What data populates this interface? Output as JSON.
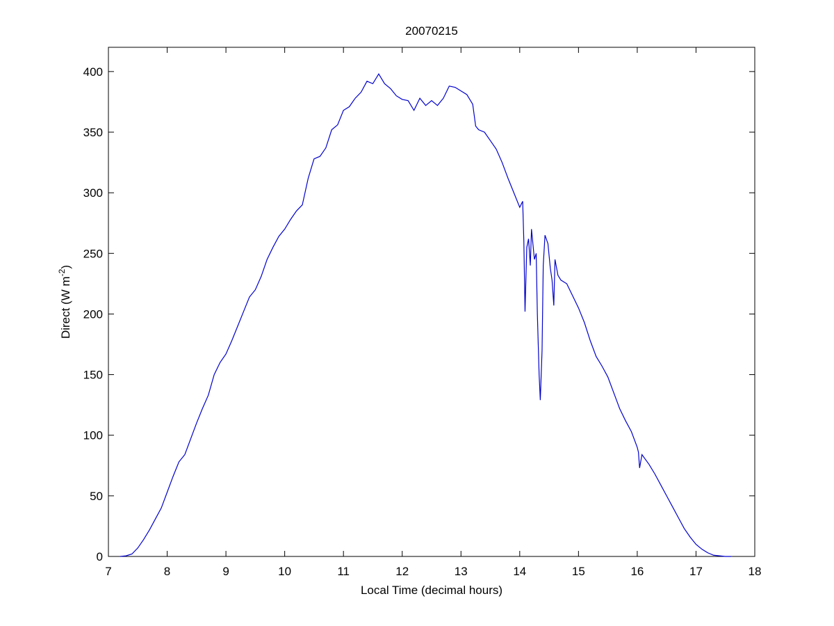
{
  "chart_data": {
    "type": "line",
    "title": "20070215",
    "xlabel": "Local Time (decimal hours)",
    "ylabel": [
      "Direct (W m",
      "-2",
      ")"
    ],
    "xlim": [
      7,
      18
    ],
    "xticks": [
      7,
      8,
      9,
      10,
      11,
      12,
      13,
      14,
      15,
      16,
      17,
      18
    ],
    "ylim": [
      0,
      420
    ],
    "yticks": [
      0,
      50,
      100,
      150,
      200,
      250,
      300,
      350,
      400
    ],
    "series": [
      {
        "color": "#0000cc",
        "x": [
          7.2,
          7.3,
          7.4,
          7.5,
          7.6,
          7.7,
          7.8,
          7.9,
          8.0,
          8.1,
          8.2,
          8.3,
          8.4,
          8.5,
          8.6,
          8.7,
          8.8,
          8.9,
          9.0,
          9.1,
          9.2,
          9.3,
          9.4,
          9.5,
          9.6,
          9.7,
          9.8,
          9.9,
          10.0,
          10.1,
          10.2,
          10.3,
          10.4,
          10.5,
          10.6,
          10.7,
          10.8,
          10.9,
          11.0,
          11.1,
          11.2,
          11.3,
          11.4,
          11.5,
          11.6,
          11.7,
          11.8,
          11.9,
          12.0,
          12.1,
          12.2,
          12.3,
          12.4,
          12.5,
          12.6,
          12.7,
          12.8,
          12.9,
          13.0,
          13.1,
          13.2,
          13.25,
          13.3,
          13.4,
          13.5,
          13.6,
          13.7,
          13.8,
          13.9,
          14.0,
          14.05,
          14.07,
          14.09,
          14.12,
          14.15,
          14.18,
          14.2,
          14.25,
          14.28,
          14.3,
          14.33,
          14.35,
          14.38,
          14.4,
          14.43,
          14.48,
          14.52,
          14.55,
          14.58,
          14.6,
          14.65,
          14.7,
          14.8,
          14.9,
          15.0,
          15.1,
          15.2,
          15.3,
          15.4,
          15.5,
          15.6,
          15.7,
          15.8,
          15.9,
          16.0,
          16.02,
          16.04,
          16.08,
          16.2,
          16.3,
          16.4,
          16.5,
          16.6,
          16.7,
          16.8,
          16.9,
          17.0,
          17.1,
          17.2,
          17.3,
          17.4,
          17.5,
          17.6
        ],
        "values": [
          0,
          0.5,
          2,
          7,
          14,
          22,
          31,
          40,
          53,
          66,
          78,
          84,
          97,
          110,
          122,
          133,
          150,
          160,
          167,
          178,
          190,
          202,
          214,
          220,
          231,
          245,
          255,
          264,
          270,
          278,
          285,
          290,
          312,
          328,
          330,
          337,
          352,
          356,
          368,
          371,
          378,
          383,
          392,
          390,
          398,
          390,
          386,
          380,
          377,
          376,
          368,
          378,
          372,
          376,
          372,
          378,
          388,
          387,
          384,
          381,
          373,
          355,
          352,
          350,
          343,
          336,
          325,
          312,
          300,
          288,
          293,
          260,
          202,
          255,
          262,
          240,
          270,
          245,
          250,
          200,
          150,
          129,
          170,
          240,
          265,
          258,
          238,
          228,
          207,
          245,
          232,
          228,
          225,
          215,
          205,
          193,
          178,
          165,
          157,
          148,
          135,
          122,
          112,
          103,
          90,
          86,
          73,
          84,
          76,
          68,
          59,
          50,
          41,
          32,
          23,
          16,
          10,
          6,
          3,
          1,
          0.5,
          0,
          0
        ]
      }
    ]
  }
}
